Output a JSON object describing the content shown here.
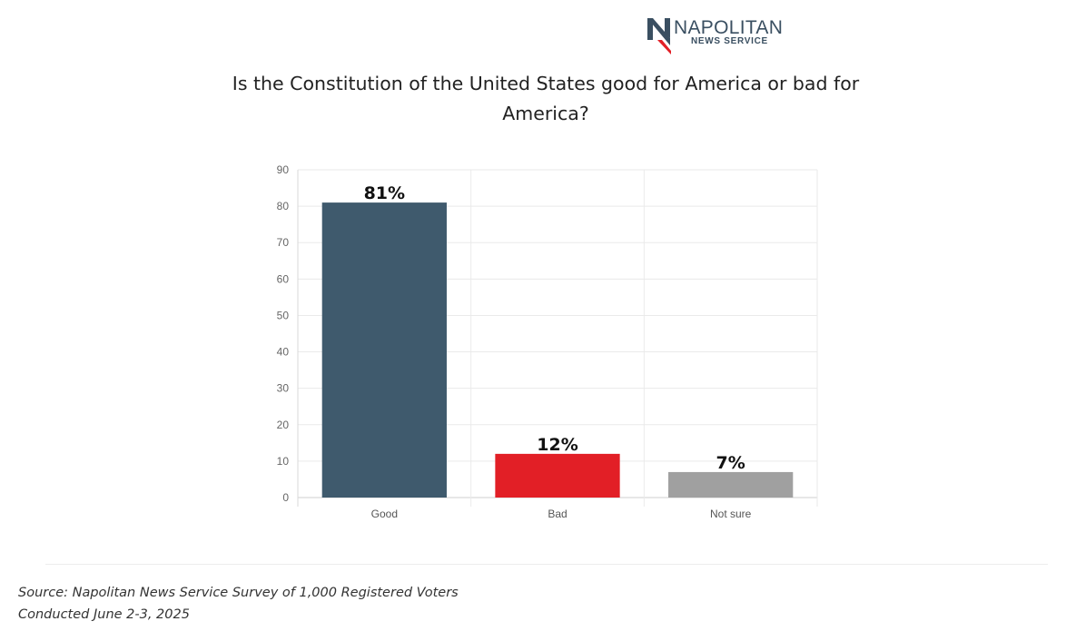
{
  "logo": {
    "name": "NAPOLITAN",
    "subtitle": "NEWS SERVICE",
    "colors": {
      "navy": "#3a4f61",
      "red": "#e21f26"
    }
  },
  "title": "Is the Constitution of the United States good for America or bad for America?",
  "chart_data": {
    "type": "bar",
    "categories": [
      "Good",
      "Bad",
      "Not sure"
    ],
    "values": [
      81,
      12,
      7
    ],
    "data_labels": [
      "81%",
      "12%",
      "7%"
    ],
    "colors": [
      "#3f5a6d",
      "#e21f26",
      "#a0a0a0"
    ],
    "ylim": [
      0,
      90
    ],
    "yticks": [
      0,
      10,
      20,
      30,
      40,
      50,
      60,
      70,
      80,
      90
    ],
    "grid": true,
    "legend": "none",
    "xlabel": "",
    "ylabel": ""
  },
  "footnotes": {
    "source": "Source: Napolitan News Service Survey of 1,000 Registered Voters",
    "conducted": "Conducted June 2-3, 2025"
  }
}
